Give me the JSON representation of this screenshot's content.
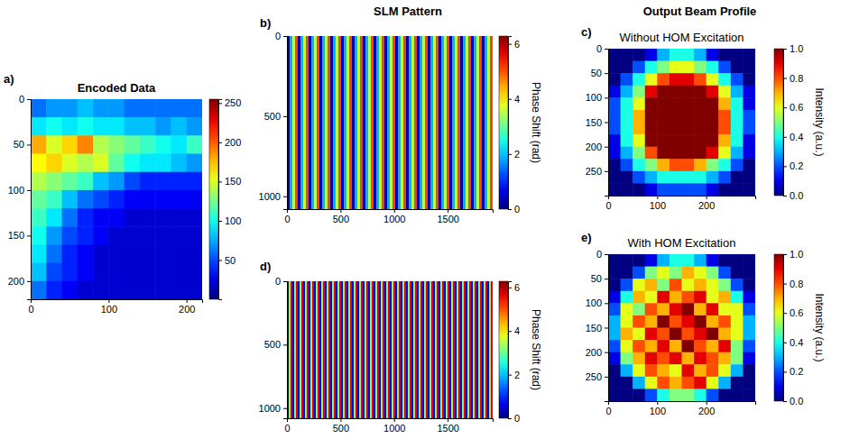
{
  "chart_data": [
    {
      "type": "heatmap",
      "panel": "a)",
      "title": "Encoded Data",
      "xlim": [
        0,
        220
      ],
      "ylim": [
        0,
        220
      ],
      "xticks": [
        0,
        100,
        200
      ],
      "yticks": [
        0,
        50,
        100,
        150,
        200
      ],
      "z": [
        [
          60,
          70,
          70,
          80,
          70,
          70,
          60,
          60,
          60,
          60,
          60
        ],
        [
          90,
          100,
          90,
          100,
          90,
          90,
          80,
          80,
          70,
          80,
          70
        ],
        [
          180,
          150,
          170,
          190,
          140,
          130,
          120,
          110,
          100,
          90,
          110
        ],
        [
          160,
          170,
          150,
          140,
          150,
          120,
          100,
          90,
          90,
          80,
          70
        ],
        [
          140,
          130,
          120,
          110,
          80,
          70,
          50,
          40,
          40,
          40,
          40
        ],
        [
          120,
          110,
          80,
          60,
          50,
          40,
          30,
          30,
          30,
          30,
          30
        ],
        [
          110,
          90,
          60,
          40,
          30,
          30,
          20,
          20,
          20,
          20,
          20
        ],
        [
          100,
          70,
          50,
          40,
          30,
          20,
          20,
          20,
          20,
          20,
          20
        ],
        [
          90,
          60,
          40,
          30,
          20,
          20,
          20,
          20,
          20,
          20,
          20
        ],
        [
          80,
          50,
          40,
          30,
          20,
          20,
          20,
          20,
          20,
          20,
          20
        ],
        [
          60,
          40,
          30,
          20,
          20,
          20,
          20,
          20,
          20,
          20,
          20
        ]
      ],
      "zlim": [
        0,
        255
      ],
      "zticks": [
        50,
        100,
        150,
        200,
        250
      ]
    },
    {
      "type": "heatmap",
      "panel": "b)",
      "suptitle": "SLM Pattern",
      "xlim": [
        0,
        1920
      ],
      "ylim": [
        0,
        1080
      ],
      "xticks": [
        0,
        500,
        1000,
        1500
      ],
      "yticks": [
        0,
        500,
        1000
      ],
      "z": [
        [
          0.3,
          1.9,
          3.5,
          5.1,
          0.3,
          1.9,
          3.5,
          5.1,
          0.3,
          1.9,
          3.5,
          5.1,
          0.3,
          1.9,
          3.5,
          5.1,
          0.3,
          1.9,
          3.5,
          5.1,
          0.3,
          1.9,
          3.5,
          5.1,
          0.3,
          1.9,
          3.5,
          5.1,
          0.3,
          1.9,
          3.5,
          5.1,
          0.3,
          1.9,
          3.5,
          5.1,
          0.3,
          1.9,
          3.5,
          5.1,
          0.3,
          1.9,
          3.5,
          5.1,
          0.3,
          1.9,
          3.5,
          5.1,
          0.3,
          1.9,
          3.5,
          5.1,
          0.3,
          1.9,
          3.5,
          5.1,
          0.3,
          1.9,
          3.5,
          5.1,
          0.3,
          1.9,
          3.5,
          5.1,
          0.3,
          1.9,
          3.5,
          5.1,
          0.3,
          1.9,
          3.5,
          5.1,
          0.3,
          1.9,
          3.5,
          5.1
        ]
      ],
      "zlim": [
        0,
        6.283
      ],
      "zticks": [
        0,
        2,
        4,
        6
      ],
      "zlabel": "Phase Shift (rad)"
    },
    {
      "type": "heatmap",
      "panel": "c)",
      "suptitle": "Output Beam Profile",
      "title": "Without HOM Excitation",
      "xlim": [
        0,
        300
      ],
      "ylim": [
        0,
        300
      ],
      "xticks": [
        0,
        100,
        200
      ],
      "yticks": [
        0,
        50,
        100,
        150,
        200,
        250
      ],
      "z": [
        [
          0,
          0,
          0,
          0.1,
          0.3,
          0.4,
          0.4,
          0.3,
          0.1,
          0,
          0,
          0
        ],
        [
          0,
          0,
          0.2,
          0.4,
          0.5,
          0.6,
          0.6,
          0.5,
          0.4,
          0.2,
          0,
          0
        ],
        [
          0,
          0.2,
          0.4,
          0.6,
          0.8,
          0.9,
          0.9,
          0.8,
          0.6,
          0.4,
          0.2,
          0
        ],
        [
          0.1,
          0.3,
          0.5,
          0.9,
          1,
          1,
          1,
          1,
          0.9,
          0.6,
          0.3,
          0.1
        ],
        [
          0.2,
          0.4,
          0.6,
          1,
          1,
          1,
          1,
          1,
          1,
          0.7,
          0.4,
          0.1
        ],
        [
          0.2,
          0.4,
          0.7,
          1,
          1,
          1,
          1,
          1,
          1,
          0.8,
          0.4,
          0.2
        ],
        [
          0.2,
          0.4,
          0.7,
          1,
          1,
          1,
          1,
          1,
          1,
          0.8,
          0.4,
          0.2
        ],
        [
          0.1,
          0.4,
          0.6,
          1,
          1,
          1,
          1,
          1,
          1,
          0.7,
          0.4,
          0.1
        ],
        [
          0.1,
          0.3,
          0.5,
          0.8,
          1,
          1,
          1,
          1,
          0.9,
          0.6,
          0.3,
          0.1
        ],
        [
          0,
          0.2,
          0.4,
          0.5,
          0.7,
          0.8,
          0.8,
          0.7,
          0.5,
          0.4,
          0.2,
          0
        ],
        [
          0,
          0,
          0.2,
          0.3,
          0.4,
          0.4,
          0.4,
          0.4,
          0.3,
          0.2,
          0,
          0
        ],
        [
          0,
          0,
          0,
          0.1,
          0.2,
          0.2,
          0.2,
          0.2,
          0.1,
          0,
          0,
          0
        ]
      ],
      "zlim": [
        0,
        1
      ],
      "zticks": [
        {
          "value": 0,
          "label": "0.0"
        },
        {
          "value": 0.2,
          "label": "0.2"
        },
        {
          "value": 0.4,
          "label": "0.4"
        },
        {
          "value": 0.6,
          "label": "0.6"
        },
        {
          "value": 0.8,
          "label": "0.8"
        },
        {
          "value": 1,
          "label": "1.0"
        }
      ],
      "zlabel": "Intensity (a.u.)"
    },
    {
      "type": "heatmap",
      "panel": "d)",
      "xlim": [
        0,
        1920
      ],
      "ylim": [
        0,
        1080
      ],
      "xticks": [
        0,
        500,
        1000,
        1500
      ],
      "yticks": [
        0,
        500,
        1000
      ],
      "z": [
        [
          0.6,
          3.1,
          5.6,
          0.6,
          3.1,
          5.6,
          0.6,
          3.1,
          5.6,
          0.6,
          3.1,
          5.6,
          0.6,
          3.1,
          5.6,
          0.6,
          3.1,
          5.6,
          0.6,
          3.1,
          5.6,
          0.6,
          3.1,
          5.6,
          0.6,
          3.1,
          5.6,
          0.6,
          3.1,
          5.6,
          0.6,
          3.1,
          5.6,
          0.6,
          3.1,
          5.6,
          0.6,
          3.1,
          5.6,
          0.6,
          3.1,
          5.6,
          0.6,
          3.1,
          5.6,
          0.6,
          3.1,
          5.6,
          0.6,
          3.1,
          5.6,
          0.6,
          3.1,
          5.6,
          0.6,
          3.1,
          5.6,
          0.6,
          3.1,
          5.6,
          0.6,
          3.1,
          5.6,
          0.6,
          3.1,
          5.6,
          0.6,
          3.1,
          5.6,
          0.6,
          3.1,
          5.6,
          0.6,
          3.1,
          5.6,
          0.6,
          3.1,
          5.6,
          0.6,
          3.1,
          5.6,
          0.6,
          3.1,
          5.6,
          0.6,
          3.1,
          5.6,
          0.6,
          3.1,
          5.6,
          0.6,
          3.1,
          5.6,
          0.6,
          3.1,
          5.6,
          0.6,
          3.1,
          5.6,
          0.6,
          3.1,
          5.6,
          0.6,
          3.1,
          5.6,
          0.6,
          3.1,
          5.6,
          0.6,
          3.1,
          5.6,
          0.6,
          3.1,
          5.6
        ]
      ],
      "zlim": [
        0,
        6.283
      ],
      "zticks": [
        0,
        2,
        4,
        6
      ],
      "zlabel": "Phase Shift (rad)"
    },
    {
      "type": "heatmap",
      "panel": "e)",
      "title": "With HOM Excitation",
      "xlim": [
        0,
        300
      ],
      "ylim": [
        0,
        300
      ],
      "xticks": [
        0,
        100,
        200
      ],
      "yticks": [
        0,
        50,
        100,
        150,
        200,
        250
      ],
      "z": [
        [
          0,
          0,
          0,
          0.1,
          0.3,
          0.4,
          0.4,
          0.3,
          0.1,
          0,
          0,
          0
        ],
        [
          0,
          0,
          0.2,
          0.5,
          0.6,
          0.5,
          0.7,
          0.6,
          0.5,
          0.2,
          0,
          0
        ],
        [
          0,
          0.2,
          0.6,
          0.7,
          0.5,
          0.8,
          0.6,
          0.7,
          0.6,
          0.5,
          0.2,
          0
        ],
        [
          0.1,
          0.4,
          0.7,
          0.6,
          0.9,
          0.7,
          0.8,
          0.9,
          0.6,
          0.7,
          0.4,
          0.1
        ],
        [
          0.2,
          0.6,
          0.5,
          0.8,
          0.7,
          0.9,
          1,
          0.7,
          0.9,
          0.6,
          0.6,
          0.2
        ],
        [
          0.3,
          0.6,
          0.8,
          0.7,
          1,
          0.8,
          0.9,
          1,
          0.7,
          0.8,
          0.6,
          0.3
        ],
        [
          0.3,
          0.7,
          0.6,
          0.9,
          0.8,
          1,
          0.8,
          0.9,
          1,
          0.7,
          0.6,
          0.3
        ],
        [
          0.2,
          0.6,
          0.8,
          0.7,
          0.9,
          0.7,
          1,
          0.8,
          0.7,
          0.9,
          0.5,
          0.2
        ],
        [
          0.1,
          0.5,
          0.7,
          0.9,
          0.8,
          0.9,
          0.7,
          0.9,
          0.8,
          0.7,
          0.5,
          0.1
        ],
        [
          0,
          0.3,
          0.6,
          0.8,
          0.7,
          0.6,
          0.9,
          0.7,
          0.8,
          0.6,
          0.3,
          0
        ],
        [
          0,
          0,
          0.3,
          0.6,
          0.8,
          0.7,
          0.8,
          0.9,
          0.6,
          0.3,
          0,
          0
        ],
        [
          0,
          0,
          0,
          0.2,
          0.4,
          0.5,
          0.5,
          0.4,
          0.2,
          0,
          0,
          0
        ]
      ],
      "zlim": [
        0,
        1
      ],
      "zticks": [
        {
          "value": 0,
          "label": "0.0"
        },
        {
          "value": 0.2,
          "label": "0.2"
        },
        {
          "value": 0.4,
          "label": "0.4"
        },
        {
          "value": 0.6,
          "label": "0.6"
        },
        {
          "value": 0.8,
          "label": "0.8"
        },
        {
          "value": 1,
          "label": "1.0"
        }
      ],
      "zlabel": "Intensity (a.u.)"
    }
  ]
}
